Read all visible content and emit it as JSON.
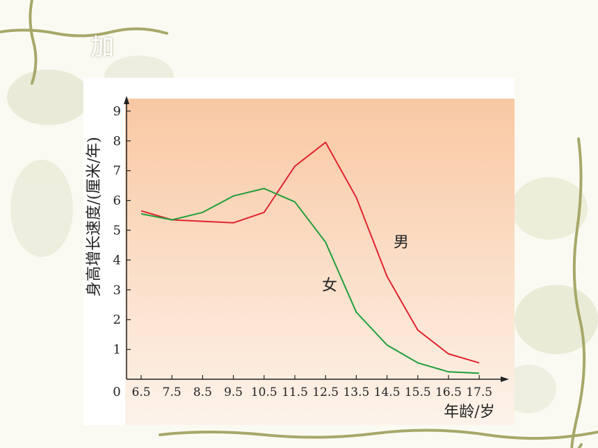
{
  "slide": {
    "heading_fragment": "加"
  },
  "chart_data": {
    "type": "line",
    "title": "",
    "xlabel": "年龄/岁",
    "ylabel": "身高增长速度/(厘米/年)",
    "origin_label": "0",
    "x": [
      6.5,
      7.5,
      8.5,
      9.5,
      10.5,
      11.5,
      12.5,
      13.5,
      14.5,
      15.5,
      16.5,
      17.5
    ],
    "x_tick_labels": [
      "6.5",
      "7.5",
      "8.5",
      "9.5",
      "10.5",
      "11.5",
      "12.5",
      "13.5",
      "14.5",
      "15.5",
      "16.5",
      "17.5"
    ],
    "y_ticks": [
      "1",
      "2",
      "3",
      "4",
      "5",
      "6",
      "7",
      "8",
      "9"
    ],
    "ylim": [
      0,
      9
    ],
    "grid": false,
    "series": [
      {
        "name": "男",
        "color": "#e0232e",
        "values": [
          5.65,
          5.35,
          5.3,
          5.25,
          5.6,
          7.15,
          7.95,
          6.1,
          3.45,
          1.65,
          0.85,
          0.55
        ]
      },
      {
        "name": "女",
        "color": "#1f9e3a",
        "values": [
          5.55,
          5.35,
          5.6,
          6.15,
          6.4,
          5.95,
          4.6,
          2.25,
          1.15,
          0.55,
          0.25,
          0.2
        ]
      }
    ],
    "colors": {
      "background_top": "#f9c8a3",
      "background_bottom": "#fdf3ea",
      "axis": "#222222"
    }
  }
}
